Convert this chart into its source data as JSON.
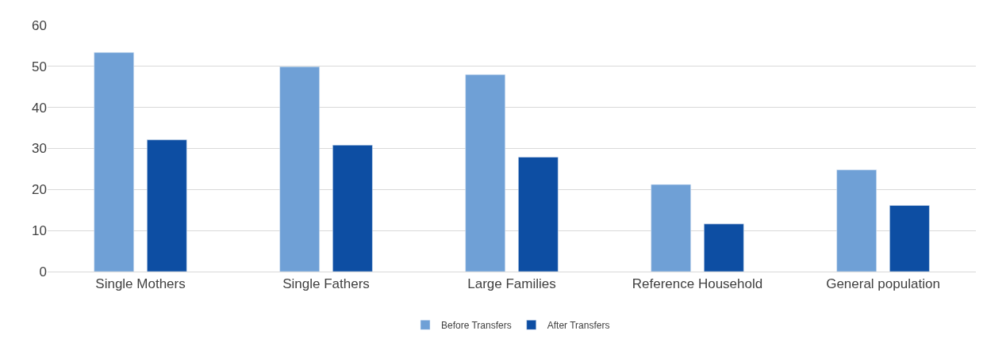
{
  "chart_data": {
    "type": "bar",
    "categories": [
      "Single Mothers",
      "Single Fathers",
      "Large Families",
      "Reference Household",
      "General population"
    ],
    "series": [
      {
        "name": "Before Transfers",
        "color": "#6fa0d6",
        "values": [
          53.4,
          49.9,
          48.0,
          21.2,
          24.8
        ]
      },
      {
        "name": "After Transfers",
        "color": "#0d4ea3",
        "values": [
          32.1,
          30.8,
          27.9,
          11.6,
          16.1
        ]
      }
    ],
    "ylim": [
      0,
      60
    ],
    "yticks": [
      0,
      10,
      20,
      30,
      40,
      50,
      60
    ],
    "grid": "y",
    "legend": "bottom"
  }
}
